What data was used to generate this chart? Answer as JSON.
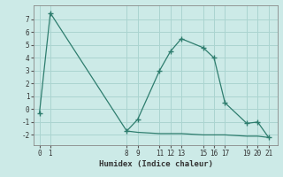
{
  "x_main": [
    0,
    1,
    8,
    9,
    11,
    12,
    13,
    15,
    16,
    17,
    19,
    20,
    21
  ],
  "y_main": [
    -0.3,
    7.5,
    -1.7,
    -0.8,
    3.0,
    4.5,
    5.5,
    4.8,
    4.0,
    0.5,
    -1.1,
    -1.0,
    -2.2
  ],
  "x_flat": [
    8,
    9,
    11,
    12,
    13,
    14,
    15,
    16,
    17,
    18,
    19,
    20,
    21
  ],
  "y_flat": [
    -1.7,
    -1.8,
    -1.9,
    -1.9,
    -1.9,
    -1.95,
    -2.0,
    -2.0,
    -2.0,
    -2.05,
    -2.1,
    -2.1,
    -2.2
  ],
  "line_color": "#2e7d6e",
  "bg_color": "#cceae7",
  "grid_color": "#aad4d0",
  "xlabel": "Humidex (Indice chaleur)",
  "xticks": [
    0,
    1,
    8,
    9,
    11,
    12,
    13,
    15,
    16,
    17,
    19,
    20,
    21
  ],
  "yticks": [
    -2,
    -1,
    0,
    1,
    2,
    3,
    4,
    5,
    6,
    7
  ],
  "ylim": [
    -2.8,
    8.1
  ],
  "xlim": [
    -0.5,
    21.8
  ]
}
